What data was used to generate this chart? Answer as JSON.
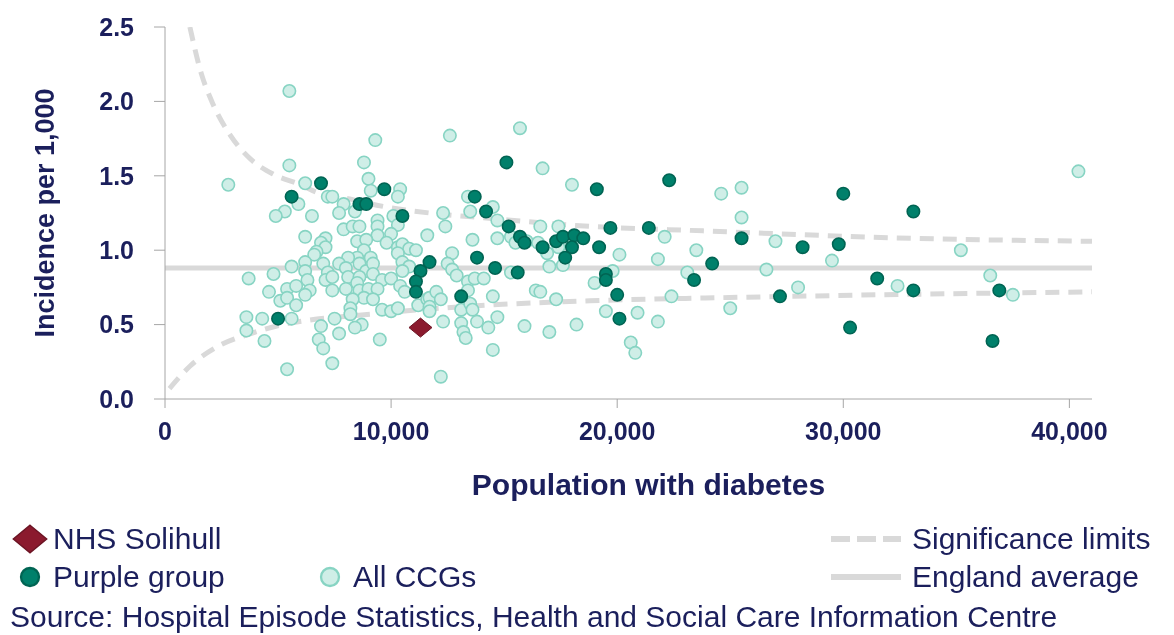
{
  "chart_data": {
    "type": "scatter",
    "xlabel": "Population with diabetes",
    "ylabel": "Incidence per 1,000",
    "xlim": [
      0,
      41000
    ],
    "xticks": [
      0,
      {
        "value": 10000,
        "label": "10,000"
      },
      {
        "value": 20000,
        "label": "20,000"
      },
      {
        "value": 30000,
        "label": "30,000"
      },
      {
        "value": 40000,
        "label": "40,000"
      }
    ],
    "ylim": [
      0,
      2.5
    ],
    "yticks": [
      {
        "value": 0,
        "label": "0.0"
      },
      0.5,
      {
        "value": 1,
        "label": "1.0"
      },
      1.5,
      {
        "value": 2,
        "label": "2.0"
      },
      2.5
    ],
    "legend": "bottom",
    "series": [
      {
        "name": "NHS Solihull",
        "type": "scatter",
        "marker": "diamond",
        "color": "#8b1a2e",
        "x": [
          11300
        ],
        "values": [
          0.48
        ]
      },
      {
        "name": "Purple group",
        "type": "scatter",
        "marker": "circle",
        "color": "#00806b",
        "x": [
          6900,
          5600,
          5000,
          9700,
          8600,
          8900,
          10500,
          13700,
          14200,
          11700,
          11300,
          11100,
          11100,
          13800,
          14600,
          13100,
          15100,
          19100,
          22300,
          15200,
          15700,
          15900,
          16700,
          17300,
          17600,
          18100,
          18500,
          18000,
          17700,
          19200,
          19700,
          21400,
          15600,
          19500,
          19500,
          20000,
          20100,
          23400,
          24200,
          25500,
          30000,
          33100,
          28200,
          29800,
          31500,
          27200,
          33100,
          36900,
          30300,
          36600
        ],
        "values": [
          1.45,
          1.36,
          0.54,
          1.41,
          1.31,
          1.31,
          1.23,
          1.36,
          1.26,
          0.92,
          0.86,
          0.79,
          0.72,
          0.95,
          0.88,
          0.69,
          1.59,
          1.41,
          1.47,
          1.16,
          1.09,
          1.05,
          1.02,
          1.06,
          1.09,
          1.1,
          1.08,
          1.02,
          0.95,
          1.02,
          1.15,
          1.15,
          0.85,
          0.84,
          0.8,
          0.7,
          0.54,
          0.8,
          0.91,
          1.08,
          1.38,
          1.26,
          1.02,
          1.04,
          0.81,
          0.69,
          0.73,
          0.73,
          0.48,
          0.39
        ]
      },
      {
        "name": "All CCGs",
        "type": "scatter",
        "marker": "circle",
        "color": "#cfeee7",
        "x": [
          5500,
          5500,
          2800,
          6200,
          5900,
          5300,
          4900,
          6500,
          7200,
          6200,
          7100,
          6900,
          7100,
          6700,
          6600,
          5600,
          6200,
          7000,
          4800,
          3700,
          6200,
          6300,
          7200,
          7100,
          4600,
          5400,
          5800,
          6400,
          6200,
          5100,
          5400,
          5800,
          3600,
          4300,
          5600,
          3600,
          4400,
          6900,
          6800,
          7000,
          5400,
          9300,
          12600,
          8800,
          9000,
          9100,
          10400,
          10300,
          7400,
          7900,
          7700,
          8400,
          9400,
          10100,
          10300,
          9400,
          12300,
          12400,
          13400,
          13500,
          14500,
          14700,
          7900,
          8300,
          8600,
          9400,
          10000,
          9800,
          8500,
          8900,
          11600,
          13600,
          14700,
          10300,
          10500,
          10800,
          11100,
          10300,
          8800,
          8500,
          8100,
          9100,
          12700,
          7700,
          8000,
          8600,
          8900,
          9200,
          10500,
          10800,
          10500,
          12500,
          12700,
          12900,
          7400,
          8100,
          8600,
          9200,
          9600,
          10000,
          10400,
          8000,
          7400,
          8500,
          8600,
          9000,
          9400,
          8800,
          9200,
          8300,
          8200,
          8200,
          9600,
          10000,
          10300,
          10600,
          11200,
          11600,
          11700,
          11700,
          11700,
          12000,
          12200,
          13400,
          13700,
          14100,
          13400,
          13100,
          13500,
          13600,
          13800,
          14500,
          14700,
          12300,
          13100,
          13200,
          13300,
          14300,
          14500,
          9500,
          8700,
          8400,
          7700,
          7500,
          7400,
          12200,
          15700,
          16700,
          18000,
          24600,
          16600,
          17400,
          15300,
          15500,
          16000,
          16500,
          16900,
          17400,
          18000,
          20100,
          22100,
          23500,
          21800,
          17000,
          17600,
          15300,
          19800,
          23100,
          19000,
          16400,
          16600,
          17300,
          22400,
          19500,
          20900,
          21800,
          15900,
          17000,
          18200,
          20600,
          20800,
          25500,
          25500,
          27000,
          26600,
          29500,
          28000,
          25000,
          32400,
          35200,
          36500,
          37500,
          40400
        ],
        "values": [
          2.07,
          1.57,
          1.44,
          1.45,
          1.31,
          1.26,
          1.23,
          1.23,
          1.36,
          1.09,
          1.08,
          1.05,
          1.02,
          0.99,
          0.97,
          0.89,
          0.92,
          0.91,
          0.84,
          0.81,
          0.86,
          0.8,
          0.85,
          0.8,
          0.72,
          0.74,
          0.76,
          0.73,
          0.7,
          0.66,
          0.68,
          0.63,
          0.55,
          0.54,
          0.54,
          0.46,
          0.39,
          0.49,
          0.4,
          0.34,
          0.2,
          1.74,
          1.77,
          1.59,
          1.48,
          1.4,
          1.41,
          1.36,
          1.36,
          1.31,
          1.25,
          1.26,
          1.2,
          1.23,
          1.17,
          1.16,
          1.25,
          1.16,
          1.36,
          1.26,
          1.29,
          1.2,
          1.14,
          1.16,
          1.16,
          1.1,
          1.11,
          1.05,
          1.06,
          1.07,
          1.1,
          1.07,
          1.08,
          1.02,
          1.04,
          1.01,
          1.0,
          0.98,
          1.0,
          0.95,
          0.95,
          0.95,
          0.98,
          0.91,
          0.88,
          0.91,
          0.86,
          0.91,
          0.92,
          0.89,
          0.86,
          0.91,
          0.87,
          0.83,
          0.82,
          0.82,
          0.82,
          0.84,
          0.8,
          0.81,
          0.76,
          0.74,
          0.73,
          0.78,
          0.73,
          0.74,
          0.74,
          0.68,
          0.67,
          0.67,
          0.61,
          0.57,
          0.6,
          0.59,
          0.61,
          0.72,
          0.63,
          0.67,
          0.68,
          0.62,
          0.59,
          0.72,
          0.67,
          0.79,
          0.81,
          0.81,
          0.73,
          0.6,
          0.64,
          0.6,
          0.52,
          0.69,
          0.55,
          0.52,
          0.51,
          0.45,
          0.41,
          0.48,
          0.33,
          0.4,
          0.5,
          0.48,
          0.44,
          0.54,
          0.24,
          0.15,
          1.82,
          1.55,
          1.44,
          1.38,
          1.16,
          1.16,
          1.09,
          1.05,
          1.06,
          1.05,
          0.98,
          1.02,
          1.06,
          0.97,
          1.09,
          1.0,
          0.94,
          0.89,
          0.9,
          0.85,
          0.86,
          0.85,
          0.78,
          0.73,
          0.72,
          0.67,
          0.69,
          0.59,
          0.58,
          0.52,
          0.49,
          0.45,
          0.5,
          0.38,
          0.31,
          1.42,
          1.22,
          1.06,
          0.87,
          0.93,
          0.75,
          0.61,
          0.76,
          1.0,
          0.83,
          0.7,
          1.53
        ]
      },
      {
        "name": "Significance limits",
        "type": "line",
        "line_style": "dashed",
        "color": "#d9d9d9",
        "x": [
          1100,
          1600,
          2100,
          2900,
          3800,
          4800,
          6000,
          6700,
          8000,
          9800,
          11700,
          13900,
          18800,
          23800,
          33000,
          41000
        ],
        "values": [
          2.5,
          2.19,
          1.99,
          1.77,
          1.61,
          1.51,
          1.44,
          1.39,
          1.35,
          1.29,
          1.25,
          1.22,
          1.16,
          1.13,
          1.08,
          1.06
        ]
      },
      {
        "type": "line",
        "line_style": "dashed",
        "color": "#d9d9d9",
        "x": [
          200,
          1100,
          2300,
          3800,
          5200,
          6400,
          9100,
          11300,
          14200,
          18800,
          24300,
          31500,
          41000
        ],
        "values": [
          0.07,
          0.22,
          0.35,
          0.44,
          0.5,
          0.53,
          0.57,
          0.6,
          0.63,
          0.66,
          0.68,
          0.7,
          0.72
        ]
      }
    ],
    "ref_lines": [
      {
        "axis": "y",
        "value": 0.88,
        "label": "England average",
        "color": "#d9d9d9",
        "line_style": "solid"
      }
    ],
    "annotations": [
      "Source: Hospital Episode Statistics, Health and Social Care Information Centre"
    ]
  }
}
